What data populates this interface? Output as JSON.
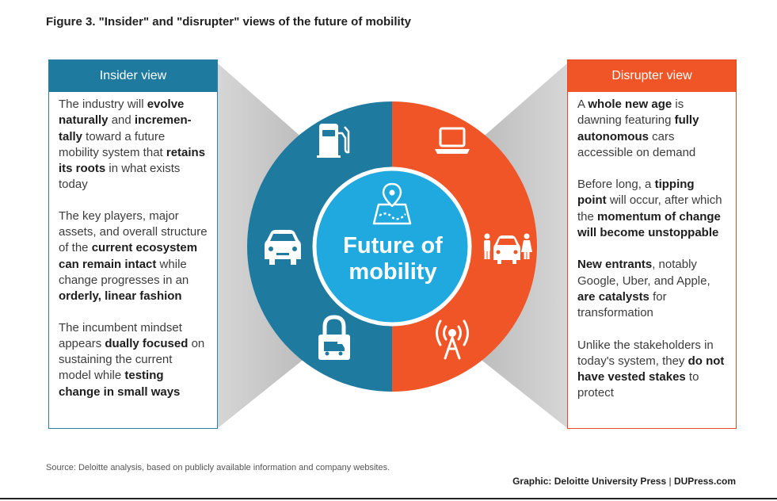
{
  "title": "Figure 3. \"Insider\" and \"disrupter\" views of the future of mobility",
  "center": {
    "line1": "Future of",
    "line2": "mobility",
    "icon": "map-pin-icon"
  },
  "colors": {
    "insider": "#1f7aa0",
    "disrupter": "#ef5526",
    "center": "#1fa9df",
    "wedge": "#c8c8c8"
  },
  "left_icons": [
    "fuel-pump-icon",
    "car-icon",
    "truck-lock-icon"
  ],
  "right_icons": [
    "laptop-icon",
    "rideshare-icon",
    "antenna-icon"
  ],
  "insider": {
    "heading": "Insider view",
    "paragraphs": [
      [
        {
          "t": "The industry will ",
          "b": false
        },
        {
          "t": "evolve naturally",
          "b": true
        },
        {
          "t": " and ",
          "b": false
        },
        {
          "t": "incremen-tally",
          "b": true
        },
        {
          "t": " toward a future mobility system that ",
          "b": false
        },
        {
          "t": "retains its roots",
          "b": true
        },
        {
          "t": " in what exists today",
          "b": false
        }
      ],
      [
        {
          "t": "The key players, major assets, and overall structure of the ",
          "b": false
        },
        {
          "t": "current ecosystem can remain intact",
          "b": true
        },
        {
          "t": " while change progresses in an ",
          "b": false
        },
        {
          "t": "orderly, linear fashion",
          "b": true
        }
      ],
      [
        {
          "t": "The incumbent mindset appears ",
          "b": false
        },
        {
          "t": "dually focused",
          "b": true
        },
        {
          "t": " on sustaining the current model while ",
          "b": false
        },
        {
          "t": "testing change in small ways",
          "b": true
        }
      ]
    ]
  },
  "disrupter": {
    "heading": "Disrupter view",
    "paragraphs": [
      [
        {
          "t": "A ",
          "b": false
        },
        {
          "t": "whole new age",
          "b": true
        },
        {
          "t": " is dawning featuring ",
          "b": false
        },
        {
          "t": "fully autonomous",
          "b": true
        },
        {
          "t": " cars accessible on demand",
          "b": false
        }
      ],
      [
        {
          "t": "Before long, a ",
          "b": false
        },
        {
          "t": "tipping point",
          "b": true
        },
        {
          "t": " will occur, after which the ",
          "b": false
        },
        {
          "t": "momentum of change will become unstoppable",
          "b": true
        }
      ],
      [
        {
          "t": "New entrants",
          "b": true
        },
        {
          "t": ", notably Google, Uber, and Apple, ",
          "b": false
        },
        {
          "t": "are catalysts",
          "b": true
        },
        {
          "t": " for transformation",
          "b": false
        }
      ],
      [
        {
          "t": "Unlike the stakeholders in today's system, they ",
          "b": false
        },
        {
          "t": "do not have vested stakes",
          "b": true
        },
        {
          "t": " to protect",
          "b": false
        }
      ]
    ]
  },
  "source": "Source: Deloitte analysis, based on publicly available information and company websites.",
  "credit": {
    "label": "Graphic: Deloitte University Press",
    "separator": "|",
    "site": "DUPress.com"
  }
}
